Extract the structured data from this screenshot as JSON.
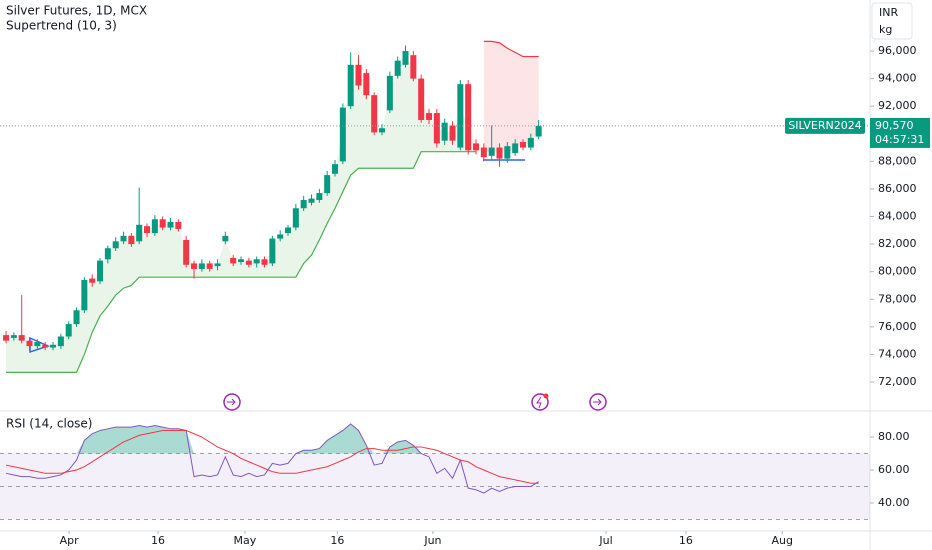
{
  "chart_data": [
    {
      "type": "candlestick",
      "title": "Silver Futures, 1D, MCX",
      "indicator": "Supertrend (10, 3)",
      "currency": "INR",
      "unit": "kg",
      "xlim": [
        -0.77,
        110.3
      ],
      "ylim": [
        69970,
        99700
      ],
      "yticks": [
        {
          "value": 72000,
          "label": "72,000"
        },
        {
          "value": 74000,
          "label": "74,000"
        },
        {
          "value": 76000,
          "label": "76,000"
        },
        {
          "value": 78000,
          "label": "78,000"
        },
        {
          "value": 80000,
          "label": "80,000"
        },
        {
          "value": 82000,
          "label": "82,000"
        },
        {
          "value": 84000,
          "label": "84,000"
        },
        {
          "value": 86000,
          "label": "86,000"
        },
        {
          "value": 88000,
          "label": "88,000"
        },
        {
          "value": 90000,
          "label": "90,000"
        },
        {
          "value": 92000,
          "label": "92,000"
        },
        {
          "value": 94000,
          "label": "94,000"
        },
        {
          "value": 96000,
          "label": "96,000"
        }
      ],
      "up_color": "#089981",
      "down_color": "#f23645",
      "open": [
        75400,
        75200,
        75400,
        75000,
        74600,
        74700,
        74500,
        74600,
        75300,
        76200,
        77200,
        79500,
        79300,
        80900,
        81700,
        82200,
        82600,
        82200,
        83300,
        82800,
        83800,
        83200,
        83600,
        82300,
        80600,
        80200,
        80600,
        80400,
        82200,
        81000,
        80700,
        80800,
        80600,
        80900,
        80600,
        82400,
        82800,
        83200,
        84600,
        85000,
        85200,
        85700,
        87100,
        88000,
        92000,
        95000,
        94400,
        92800,
        90100,
        91700,
        94200,
        95000,
        95700,
        94000,
        91500,
        91500,
        89500,
        90600,
        89000,
        93600,
        89300,
        89000,
        88400,
        89000,
        88200,
        88600,
        89400,
        89000,
        89800
      ],
      "high": [
        75700,
        75600,
        78300,
        75200,
        75100,
        74900,
        74900,
        75500,
        76400,
        77400,
        79600,
        79800,
        81000,
        81900,
        82500,
        82900,
        82800,
        86100,
        83500,
        84100,
        84000,
        83900,
        83800,
        82600,
        80800,
        80900,
        80800,
        80900,
        82900,
        81200,
        81100,
        81000,
        81100,
        81100,
        82600,
        83000,
        83400,
        84900,
        85500,
        85600,
        86000,
        87300,
        88100,
        92200,
        95900,
        95700,
        94700,
        93000,
        90700,
        94500,
        95600,
        96400,
        96000,
        94300,
        91800,
        91800,
        91100,
        90900,
        93900,
        93900,
        89600,
        89300,
        90600,
        89300,
        89400,
        89600,
        89600,
        90000,
        91000
      ],
      "low": [
        74800,
        75000,
        74800,
        74300,
        74400,
        74300,
        74300,
        74400,
        75100,
        76000,
        77000,
        78900,
        79100,
        80600,
        81500,
        82000,
        81800,
        82000,
        82500,
        82600,
        83000,
        83000,
        82900,
        80300,
        79500,
        80000,
        80000,
        80100,
        82000,
        80400,
        80500,
        80300,
        80300,
        80300,
        80400,
        82200,
        82600,
        83000,
        84400,
        84800,
        85000,
        85500,
        86900,
        87800,
        91800,
        93200,
        92500,
        89900,
        89900,
        91500,
        94000,
        94800,
        93800,
        90800,
        90700,
        89000,
        89200,
        89200,
        88800,
        88500,
        88500,
        88000,
        88100,
        87600,
        87900,
        88400,
        88800,
        88800,
        89600
      ],
      "close": [
        75000,
        75400,
        75000,
        74600,
        74900,
        74500,
        74700,
        75300,
        76200,
        77200,
        79400,
        79200,
        80800,
        81700,
        82200,
        82600,
        82000,
        83400,
        82800,
        83800,
        83200,
        83600,
        83100,
        80500,
        80200,
        80600,
        80200,
        80600,
        82600,
        80600,
        80900,
        80500,
        80900,
        80500,
        82400,
        82700,
        83200,
        84600,
        85200,
        85300,
        85700,
        87000,
        87800,
        91900,
        95000,
        93500,
        92800,
        90100,
        90400,
        94200,
        95300,
        96000,
        94000,
        91000,
        91000,
        89300,
        90800,
        89500,
        93600,
        88800,
        88800,
        88300,
        89000,
        88200,
        89100,
        89300,
        89000,
        89700,
        90570
      ],
      "supertrend_up": [
        72700,
        72700,
        72700,
        72700,
        72700,
        72700,
        72700,
        72700,
        72700,
        72700,
        74000,
        75600,
        76800,
        77500,
        78300,
        78800,
        79000,
        79600,
        79600,
        79600,
        79600,
        79600,
        79600,
        79600,
        79600,
        79600,
        79600,
        79600,
        79600,
        79600,
        79600,
        79600,
        79600,
        79600,
        79600,
        79600,
        79600,
        79600,
        80600,
        81200,
        82300,
        83500,
        84600,
        85800,
        87000,
        87500,
        87500,
        87500,
        87500,
        87500,
        87500,
        87500,
        87500,
        88700,
        88700,
        88700,
        88700,
        88700,
        88700,
        88700,
        88700,
        null,
        null,
        null,
        null,
        null,
        null,
        null,
        null
      ],
      "supertrend_down": [
        null,
        null,
        null,
        null,
        null,
        null,
        null,
        null,
        null,
        null,
        null,
        null,
        null,
        null,
        null,
        null,
        null,
        null,
        null,
        null,
        null,
        null,
        null,
        null,
        null,
        null,
        null,
        null,
        null,
        null,
        null,
        null,
        null,
        null,
        null,
        null,
        null,
        null,
        null,
        null,
        null,
        null,
        null,
        null,
        null,
        null,
        null,
        null,
        null,
        null,
        null,
        null,
        null,
        null,
        null,
        null,
        null,
        null,
        null,
        null,
        null,
        96700,
        96700,
        96600,
        96200,
        95900,
        95600,
        95600,
        95600
      ],
      "supertrend_up_color": "#4caf50",
      "supertrend_down_color": "#f23645",
      "symbol": "SILVERN2024",
      "last_price": {
        "value": 90570,
        "label": "90,570"
      },
      "countdown": "04:57:31"
    },
    {
      "type": "line",
      "title": "RSI (14, close)",
      "xlim": [
        -0.77,
        110.3
      ],
      "ylim": [
        23.6,
        95.2
      ],
      "yticks": [
        {
          "value": 40,
          "label": "40.00"
        },
        {
          "value": 60,
          "label": "60.00"
        },
        {
          "value": 80,
          "label": "80.00"
        }
      ],
      "levels": [
        70,
        50,
        30
      ],
      "xticks": [
        {
          "value": 8.05,
          "label": "Apr"
        },
        {
          "value": 19.4,
          "label": "16"
        },
        {
          "value": 30.5,
          "label": "May"
        },
        {
          "value": 42.3,
          "label": "16"
        },
        {
          "value": 54.5,
          "label": "Jun"
        },
        {
          "value": 76.6,
          "label": "Jul"
        },
        {
          "value": 86.8,
          "label": "16"
        },
        {
          "value": 99.1,
          "label": "Aug"
        }
      ],
      "series": [
        {
          "color": "#7e57c2",
          "values": [
            58,
            57,
            56,
            56,
            55,
            55,
            56,
            57,
            60,
            66,
            78,
            82,
            84,
            85,
            86,
            86,
            86,
            87,
            86,
            87,
            86,
            85,
            85,
            84,
            56,
            57,
            56,
            57,
            68,
            57,
            56,
            58,
            56,
            57,
            64,
            63,
            64,
            70,
            72,
            72,
            73,
            78,
            81,
            84,
            88,
            84,
            75,
            63,
            64,
            74,
            77,
            78,
            75,
            70,
            68,
            58,
            61,
            55,
            66,
            49,
            48,
            46,
            49,
            47,
            49,
            50,
            50,
            50,
            53
          ]
        },
        {
          "color": "#f23645",
          "values": [
            63,
            62,
            61,
            60,
            59,
            58,
            58,
            58,
            59,
            60,
            62,
            65,
            68,
            71,
            74,
            77,
            79,
            81,
            82,
            83,
            84,
            84,
            84,
            84,
            82,
            80,
            77,
            74,
            72,
            70,
            67,
            65,
            63,
            61,
            59,
            58,
            58,
            58,
            59,
            60,
            61,
            62,
            64,
            66,
            68,
            71,
            73,
            73,
            72,
            72,
            72,
            73,
            74,
            74,
            73,
            72,
            70,
            68,
            66,
            65,
            62,
            60,
            58,
            56,
            55,
            54,
            53,
            52,
            52
          ]
        }
      ]
    }
  ]
}
